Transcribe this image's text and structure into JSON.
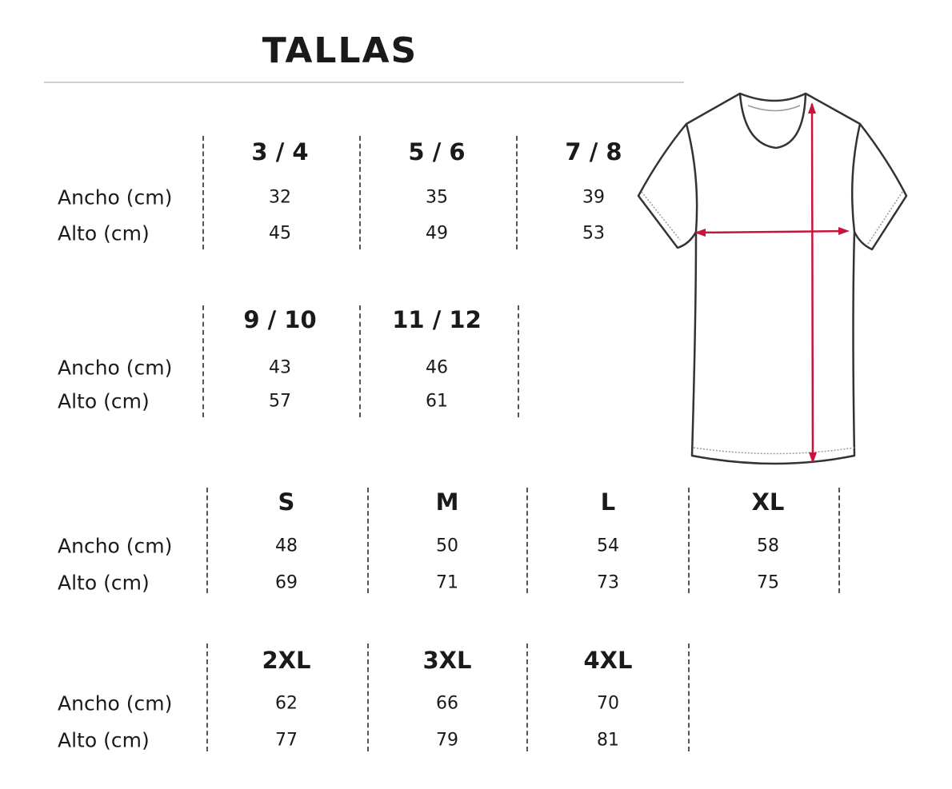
{
  "title": "TALLAS",
  "row_labels": {
    "width": "Ancho (cm)",
    "height": "Alto (cm)"
  },
  "groups": [
    {
      "sizes": [
        {
          "size": "3 / 4",
          "ancho": "32",
          "alto": "45"
        },
        {
          "size": "5 / 6",
          "ancho": "35",
          "alto": "49"
        },
        {
          "size": "7 / 8",
          "ancho": "39",
          "alto": "53"
        }
      ]
    },
    {
      "sizes": [
        {
          "size": "9 / 10",
          "ancho": "43",
          "alto": "57"
        },
        {
          "size": "11 / 12",
          "ancho": "46",
          "alto": "61"
        }
      ]
    },
    {
      "sizes": [
        {
          "size": "S",
          "ancho": "48",
          "alto": "69"
        },
        {
          "size": "M",
          "ancho": "50",
          "alto": "71"
        },
        {
          "size": "L",
          "ancho": "54",
          "alto": "73"
        },
        {
          "size": "XL",
          "ancho": "58",
          "alto": "75"
        }
      ]
    },
    {
      "sizes": [
        {
          "size": "2XL",
          "ancho": "62",
          "alto": "77"
        },
        {
          "size": "3XL",
          "ancho": "66",
          "alto": "79"
        },
        {
          "size": "4XL",
          "ancho": "70",
          "alto": "81"
        }
      ]
    }
  ],
  "illustration": {
    "icon": "tshirt-measurement-icon",
    "arrow_color": "#c8143c"
  }
}
